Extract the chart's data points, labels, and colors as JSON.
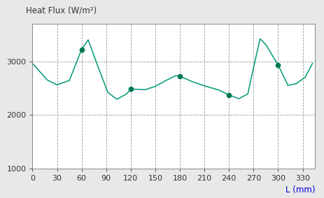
{
  "title": "Heat Flux (W/m²)",
  "xlabel": "L (mm)",
  "xlim": [
    0,
    345
  ],
  "ylim": [
    1000,
    3700
  ],
  "xticks": [
    0,
    30,
    60,
    90,
    120,
    150,
    180,
    210,
    240,
    270,
    300,
    330
  ],
  "yticks": [
    1000,
    2000,
    3000
  ],
  "line_color": "#009977",
  "marker_color": "#007755",
  "plot_bg_color": "#ffffff",
  "fig_bg_color": "#e8e8e8",
  "x": [
    0,
    18,
    30,
    45,
    60,
    68,
    80,
    92,
    103,
    115,
    120,
    138,
    150,
    163,
    175,
    180,
    195,
    210,
    228,
    240,
    252,
    263,
    272,
    278,
    285,
    300,
    312,
    322,
    333,
    342
  ],
  "y": [
    2960,
    2650,
    2560,
    2640,
    3220,
    3400,
    2900,
    2420,
    2290,
    2390,
    2480,
    2470,
    2530,
    2640,
    2730,
    2720,
    2620,
    2540,
    2460,
    2370,
    2300,
    2390,
    3020,
    3420,
    3310,
    2930,
    2550,
    2580,
    2700,
    2960
  ],
  "marked_x": [
    60,
    120,
    180,
    240,
    300
  ],
  "marked_y": [
    3220,
    2480,
    2720,
    2370,
    2930
  ],
  "errorbar_yerr": 45
}
